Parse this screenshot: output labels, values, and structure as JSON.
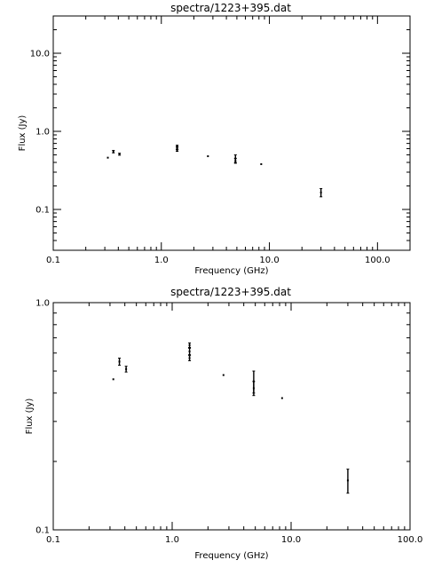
{
  "chart_data": [
    {
      "type": "scatter",
      "title": "spectra/1223+395.dat",
      "xlabel": "Frequency (GHz)",
      "ylabel": "Flux (Jy)",
      "xscale": "log",
      "yscale": "log",
      "xlim": [
        0.1,
        200
      ],
      "ylim": [
        0.03,
        30
      ],
      "xticks": [
        0.1,
        1.0,
        10.0,
        100.0
      ],
      "xtick_labels": [
        "0.1",
        "1.0",
        "10.0",
        "100.0"
      ],
      "yticks": [
        0.1,
        1.0,
        10.0
      ],
      "ytick_labels": [
        "0.1",
        "1.0",
        "10.0"
      ],
      "grid": false,
      "points": [
        {
          "x": 0.32,
          "y": 0.46,
          "err": 0.0
        },
        {
          "x": 0.36,
          "y": 0.55,
          "err": 0.02
        },
        {
          "x": 0.41,
          "y": 0.51,
          "err": 0.015
        },
        {
          "x": 1.4,
          "y": 0.57,
          "err": 0.015
        },
        {
          "x": 1.4,
          "y": 0.61,
          "err": 0.02
        },
        {
          "x": 1.4,
          "y": 0.65,
          "err": 0.015
        },
        {
          "x": 2.7,
          "y": 0.48,
          "err": 0.0
        },
        {
          "x": 4.85,
          "y": 0.42,
          "err": 0.03
        },
        {
          "x": 4.85,
          "y": 0.45,
          "err": 0.05
        },
        {
          "x": 8.4,
          "y": 0.38,
          "err": 0.0
        },
        {
          "x": 30.0,
          "y": 0.165,
          "err": 0.02
        }
      ]
    },
    {
      "type": "scatter",
      "title": "spectra/1223+395.dat",
      "xlabel": "Frequency (GHz)",
      "ylabel": "Flux (Jy)",
      "xscale": "log",
      "yscale": "log",
      "xlim": [
        0.1,
        100
      ],
      "ylim": [
        0.1,
        1.0
      ],
      "xticks": [
        0.1,
        1.0,
        10.0,
        100.0
      ],
      "xtick_labels": [
        "0.1",
        "1.0",
        "10.0",
        "100.0"
      ],
      "yticks": [
        0.1,
        1.0
      ],
      "ytick_labels": [
        "0.1",
        "1.0"
      ],
      "grid": false,
      "points": [
        {
          "x": 0.32,
          "y": 0.46,
          "err": 0.0
        },
        {
          "x": 0.36,
          "y": 0.55,
          "err": 0.02
        },
        {
          "x": 0.41,
          "y": 0.51,
          "err": 0.015
        },
        {
          "x": 1.4,
          "y": 0.57,
          "err": 0.015
        },
        {
          "x": 1.4,
          "y": 0.61,
          "err": 0.02
        },
        {
          "x": 1.4,
          "y": 0.65,
          "err": 0.015
        },
        {
          "x": 2.7,
          "y": 0.48,
          "err": 0.0
        },
        {
          "x": 4.85,
          "y": 0.42,
          "err": 0.03
        },
        {
          "x": 4.85,
          "y": 0.45,
          "err": 0.05
        },
        {
          "x": 8.4,
          "y": 0.38,
          "err": 0.0
        },
        {
          "x": 30.0,
          "y": 0.165,
          "err": 0.02
        }
      ]
    }
  ]
}
